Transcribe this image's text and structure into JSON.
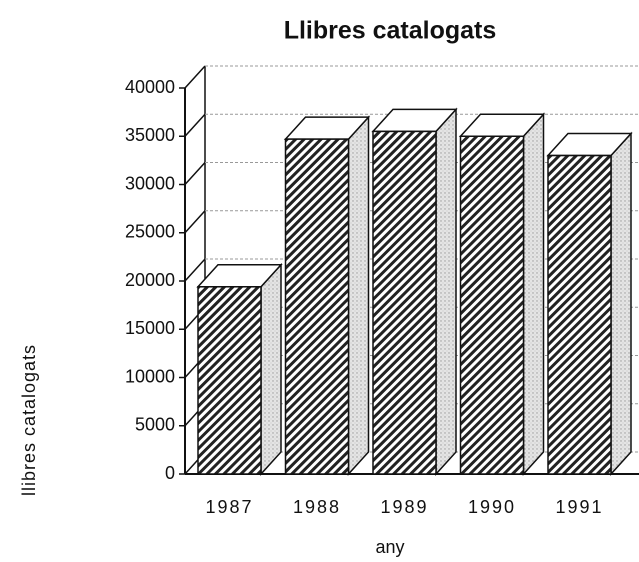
{
  "chart_data": {
    "type": "bar",
    "title": "Llibres catalogats",
    "x_label": "any",
    "y_label": "llibres catalogats",
    "categories": [
      "1987",
      "1988",
      "1989",
      "1990",
      "1991"
    ],
    "values": [
      19400,
      34700,
      35500,
      35000,
      33000
    ],
    "ylim": [
      0,
      40000
    ],
    "yticks": [
      0,
      5000,
      10000,
      15000,
      20000,
      25000,
      30000,
      35000,
      40000
    ],
    "grid": true
  }
}
